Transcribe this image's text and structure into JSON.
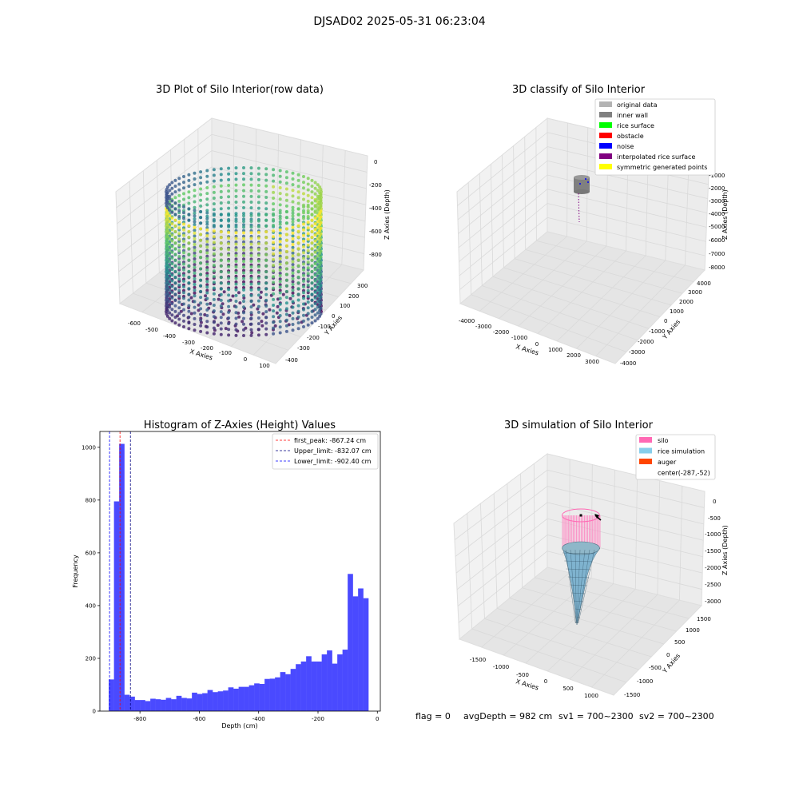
{
  "figure_title": "DJSAD02 2025-05-31 06:23:04",
  "footer": {
    "flag": "flag = 0",
    "avg_depth": "avgDepth = 982 cm",
    "sv1": "sv1 = 700~2300",
    "sv2": "sv2 = 700~2300"
  },
  "chart_data": [
    {
      "type": "scatter",
      "title": "3D Plot of Silo Interior(row data)",
      "xlabel": "X Axies",
      "ylabel": "Y Axies",
      "zlabel": "Z Axies (Depth)",
      "x_ticks": [
        "-600",
        "-500",
        "-400",
        "-300",
        "-200",
        "-100",
        "0",
        "100"
      ],
      "y_ticks": [
        "-400",
        "-300",
        "-200",
        "-100",
        "0",
        "100",
        "200",
        "300"
      ],
      "z_ticks": [
        "0",
        "-200",
        "-400",
        "-600",
        "-800"
      ],
      "xlim": [
        -650,
        100
      ],
      "ylim": [
        -450,
        350
      ],
      "zlim": [
        -900,
        0
      ],
      "colormap": "viridis"
    },
    {
      "type": "scatter",
      "title": "3D classify of Silo Interior",
      "xlabel": "X Axies",
      "ylabel": "Y Axies",
      "zlabel": "Z Axies (Depth)",
      "x_ticks": [
        "-4000",
        "-3000",
        "-2000",
        "-1000",
        "0",
        "1000",
        "2000",
        "3000"
      ],
      "y_ticks": [
        "-4000",
        "-3000",
        "-2000",
        "-1000",
        "0",
        "1000",
        "2000",
        "3000",
        "4000"
      ],
      "z_ticks": [
        "-1000",
        "-2000",
        "-3000",
        "-4000",
        "-5000",
        "-6000",
        "-7000",
        "-8000"
      ],
      "legend_position": "top-right",
      "legend": [
        {
          "label": "original data",
          "color": "#b3b3b3"
        },
        {
          "label": "inner wall",
          "color": "#808080"
        },
        {
          "label": "rice surface",
          "color": "#00ff00"
        },
        {
          "label": "obstacle",
          "color": "#ff0000"
        },
        {
          "label": "noise",
          "color": "#0000ff"
        },
        {
          "label": "interpolated rice surface",
          "color": "#800080"
        },
        {
          "label": "symmetric generated points",
          "color": "#ffff00"
        }
      ]
    },
    {
      "type": "bar",
      "title": "Histogram of Z-Axies (Height) Values",
      "xlabel": "Depth (cm)",
      "ylabel": "Frequency",
      "xlim": [
        -935,
        10
      ],
      "ylim": [
        0,
        1060
      ],
      "x_ticks": [
        -800,
        -600,
        -400,
        -200,
        0
      ],
      "y_ticks": [
        0,
        200,
        400,
        600,
        800,
        1000
      ],
      "bar_color": "#4040ff",
      "bin_width": 17.5,
      "bins": [
        {
          "x0": -905,
          "y": 120
        },
        {
          "x0": -887.5,
          "y": 795
        },
        {
          "x0": -870,
          "y": 1013
        },
        {
          "x0": -852.5,
          "y": 62
        },
        {
          "x0": -835,
          "y": 55
        },
        {
          "x0": -817.5,
          "y": 42
        },
        {
          "x0": -800,
          "y": 42
        },
        {
          "x0": -782.5,
          "y": 38
        },
        {
          "x0": -765,
          "y": 47
        },
        {
          "x0": -747.5,
          "y": 45
        },
        {
          "x0": -730,
          "y": 43
        },
        {
          "x0": -712.5,
          "y": 50
        },
        {
          "x0": -695,
          "y": 45
        },
        {
          "x0": -677.5,
          "y": 58
        },
        {
          "x0": -660,
          "y": 50
        },
        {
          "x0": -642.5,
          "y": 48
        },
        {
          "x0": -625,
          "y": 70
        },
        {
          "x0": -607.5,
          "y": 65
        },
        {
          "x0": -590,
          "y": 68
        },
        {
          "x0": -572.5,
          "y": 80
        },
        {
          "x0": -555,
          "y": 72
        },
        {
          "x0": -537.5,
          "y": 75
        },
        {
          "x0": -520,
          "y": 78
        },
        {
          "x0": -502.5,
          "y": 90
        },
        {
          "x0": -485,
          "y": 85
        },
        {
          "x0": -467.5,
          "y": 92
        },
        {
          "x0": -450,
          "y": 92
        },
        {
          "x0": -432.5,
          "y": 98
        },
        {
          "x0": -415,
          "y": 105
        },
        {
          "x0": -397.5,
          "y": 103
        },
        {
          "x0": -380,
          "y": 122
        },
        {
          "x0": -362.5,
          "y": 123
        },
        {
          "x0": -345,
          "y": 128
        },
        {
          "x0": -327.5,
          "y": 148
        },
        {
          "x0": -310,
          "y": 140
        },
        {
          "x0": -292.5,
          "y": 160
        },
        {
          "x0": -275,
          "y": 178
        },
        {
          "x0": -257.5,
          "y": 188
        },
        {
          "x0": -240,
          "y": 208
        },
        {
          "x0": -222.5,
          "y": 188
        },
        {
          "x0": -205,
          "y": 188
        },
        {
          "x0": -187.5,
          "y": 215
        },
        {
          "x0": -170,
          "y": 230
        },
        {
          "x0": -152.5,
          "y": 180
        },
        {
          "x0": -135,
          "y": 215
        },
        {
          "x0": -117.5,
          "y": 233
        },
        {
          "x0": -100,
          "y": 520
        },
        {
          "x0": -82.5,
          "y": 435
        },
        {
          "x0": -65,
          "y": 465
        },
        {
          "x0": -47.5,
          "y": 428
        }
      ],
      "vlines": [
        {
          "x": -867.24,
          "color": "#ff0000",
          "label": "first_peak: -867.24 cm"
        },
        {
          "x": -832.07,
          "color": "#000080",
          "label": "Upper_limit: -832.07 cm"
        },
        {
          "x": -902.4,
          "color": "#0000ff",
          "label": "Lower_limit: -902.40 cm"
        }
      ],
      "legend_position": "top-right"
    },
    {
      "type": "area",
      "title": "3D simulation of Silo Interior",
      "xlabel": "X Axies",
      "ylabel": "Y Axies",
      "zlabel": "Z Axies (Depth)",
      "x_ticks": [
        "-1500",
        "-1000",
        "-500",
        "0",
        "500",
        "1000"
      ],
      "y_ticks": [
        "-1500",
        "-1000",
        "-500",
        "0",
        "500",
        "1000",
        "1500"
      ],
      "z_ticks": [
        "0",
        "-500",
        "-1000",
        "-1500",
        "-2000",
        "-2500",
        "-3000"
      ],
      "legend_position": "top-right",
      "legend": [
        {
          "label": "silo",
          "color": "#ff69b4"
        },
        {
          "label": "rice simulation",
          "color": "#87ceeb"
        },
        {
          "label": "auger",
          "color": "#ff4500"
        },
        {
          "label": "center(-287,-52)",
          "color": ""
        }
      ]
    }
  ]
}
